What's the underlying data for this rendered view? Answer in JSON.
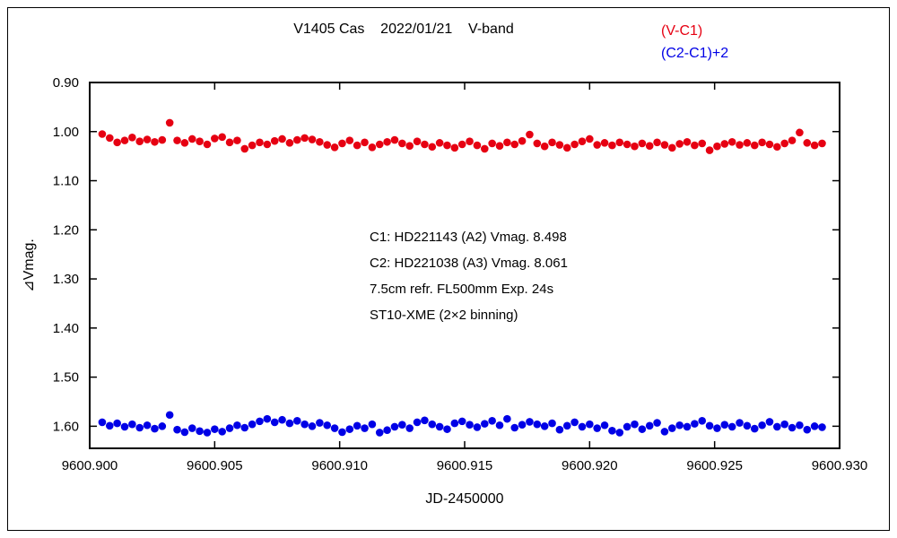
{
  "chart_data": {
    "type": "scatter",
    "title": "V1405 Cas    2022/01/21    V-band",
    "xlabel": "JD-2450000",
    "ylabel": "⊿Vmag.",
    "xlim": [
      9600.9,
      9600.93
    ],
    "ylim": [
      0.9,
      1.645
    ],
    "y_inverted": true,
    "grid": false,
    "legend_position": "top-right",
    "frame_color": "#000000",
    "x_ticks": {
      "values": [
        9600.9,
        9600.905,
        9600.91,
        9600.915,
        9600.92,
        9600.925,
        9600.93
      ],
      "labels": [
        "9600.900",
        "9600.905",
        "9600.910",
        "9600.915",
        "9600.920",
        "9600.925",
        "9600.930"
      ]
    },
    "y_ticks": {
      "values": [
        0.9,
        1.0,
        1.1,
        1.2,
        1.3,
        1.4,
        1.5,
        1.6
      ],
      "labels": [
        "0.90",
        "1.00",
        "1.10",
        "1.20",
        "1.30",
        "1.40",
        "1.50",
        "1.60"
      ]
    },
    "annotation_lines": [
      "C1: HD221143 (A2) Vmag. 8.498",
      "C2: HD221038 (A3) Vmag. 8.061",
      "7.5cm refr. FL500mm Exp. 24s",
      "ST10-XME (2×2 binning)"
    ],
    "x": [
      9600.9005,
      9600.9008,
      9600.9011,
      9600.9014,
      9600.9017,
      9600.902,
      9600.9023,
      9600.9026,
      9600.9029,
      9600.9032,
      9600.9035,
      9600.9038,
      9600.9041,
      9600.9044,
      9600.9047,
      9600.905,
      9600.9053,
      9600.9056,
      9600.9059,
      9600.9062,
      9600.9065,
      9600.9068,
      9600.9071,
      9600.9074,
      9600.9077,
      9600.908,
      9600.9083,
      9600.9086,
      9600.9089,
      9600.9092,
      9600.9095,
      9600.9098,
      9600.9101,
      9600.9104,
      9600.9107,
      9600.911,
      9600.9113,
      9600.9116,
      9600.9119,
      9600.9122,
      9600.9125,
      9600.9128,
      9600.9131,
      9600.9134,
      9600.9137,
      9600.914,
      9600.9143,
      9600.9146,
      9600.9149,
      9600.9152,
      9600.9155,
      9600.9158,
      9600.9161,
      9600.9164,
      9600.9167,
      9600.917,
      9600.9173,
      9600.9176,
      9600.9179,
      9600.9182,
      9600.9185,
      9600.9188,
      9600.9191,
      9600.9194,
      9600.9197,
      9600.92,
      9600.9203,
      9600.9206,
      9600.9209,
      9600.9212,
      9600.9215,
      9600.9218,
      9600.9221,
      9600.9224,
      9600.9227,
      9600.923,
      9600.9233,
      9600.9236,
      9600.9239,
      9600.9242,
      9600.9245,
      9600.9248,
      9600.9251,
      9600.9254,
      9600.9257,
      9600.926,
      9600.9263,
      9600.9266,
      9600.9269,
      9600.9272,
      9600.9275,
      9600.9278,
      9600.9281,
      9600.9284,
      9600.9287,
      9600.929,
      9600.9293
    ],
    "series": [
      {
        "name": "(V-C1)",
        "color": "#e60012",
        "marker": "circle",
        "y": [
          1.005,
          1.013,
          1.022,
          1.018,
          1.012,
          1.02,
          1.016,
          1.021,
          1.017,
          0.982,
          1.018,
          1.023,
          1.015,
          1.02,
          1.026,
          1.014,
          1.011,
          1.022,
          1.018,
          1.035,
          1.028,
          1.022,
          1.026,
          1.019,
          1.015,
          1.023,
          1.017,
          1.013,
          1.016,
          1.021,
          1.027,
          1.032,
          1.024,
          1.018,
          1.028,
          1.022,
          1.032,
          1.026,
          1.021,
          1.017,
          1.024,
          1.029,
          1.02,
          1.026,
          1.031,
          1.023,
          1.028,
          1.033,
          1.026,
          1.02,
          1.028,
          1.035,
          1.024,
          1.029,
          1.022,
          1.026,
          1.019,
          1.006,
          1.024,
          1.03,
          1.022,
          1.027,
          1.033,
          1.026,
          1.02,
          1.015,
          1.027,
          1.023,
          1.028,
          1.022,
          1.026,
          1.03,
          1.024,
          1.029,
          1.022,
          1.027,
          1.033,
          1.025,
          1.021,
          1.028,
          1.024,
          1.038,
          1.03,
          1.025,
          1.021,
          1.027,
          1.023,
          1.028,
          1.022,
          1.026,
          1.031,
          1.024,
          1.018,
          1.002,
          1.023,
          1.028,
          1.024
        ]
      },
      {
        "name": "(C2-C1)+2",
        "color": "#0000e6",
        "marker": "circle",
        "y": [
          1.592,
          1.599,
          1.594,
          1.601,
          1.596,
          1.603,
          1.598,
          1.605,
          1.6,
          1.577,
          1.607,
          1.612,
          1.604,
          1.61,
          1.613,
          1.606,
          1.611,
          1.604,
          1.598,
          1.603,
          1.596,
          1.59,
          1.585,
          1.592,
          1.587,
          1.594,
          1.589,
          1.596,
          1.6,
          1.593,
          1.598,
          1.604,
          1.612,
          1.606,
          1.599,
          1.604,
          1.596,
          1.613,
          1.608,
          1.601,
          1.597,
          1.604,
          1.592,
          1.588,
          1.596,
          1.601,
          1.606,
          1.594,
          1.59,
          1.597,
          1.602,
          1.595,
          1.589,
          1.598,
          1.585,
          1.603,
          1.597,
          1.591,
          1.596,
          1.6,
          1.594,
          1.607,
          1.599,
          1.592,
          1.601,
          1.596,
          1.604,
          1.598,
          1.609,
          1.613,
          1.601,
          1.596,
          1.606,
          1.599,
          1.593,
          1.611,
          1.604,
          1.598,
          1.601,
          1.595,
          1.589,
          1.599,
          1.604,
          1.597,
          1.601,
          1.593,
          1.599,
          1.605,
          1.598,
          1.591,
          1.601,
          1.596,
          1.603,
          1.598,
          1.607,
          1.6,
          1.602
        ]
      }
    ]
  }
}
